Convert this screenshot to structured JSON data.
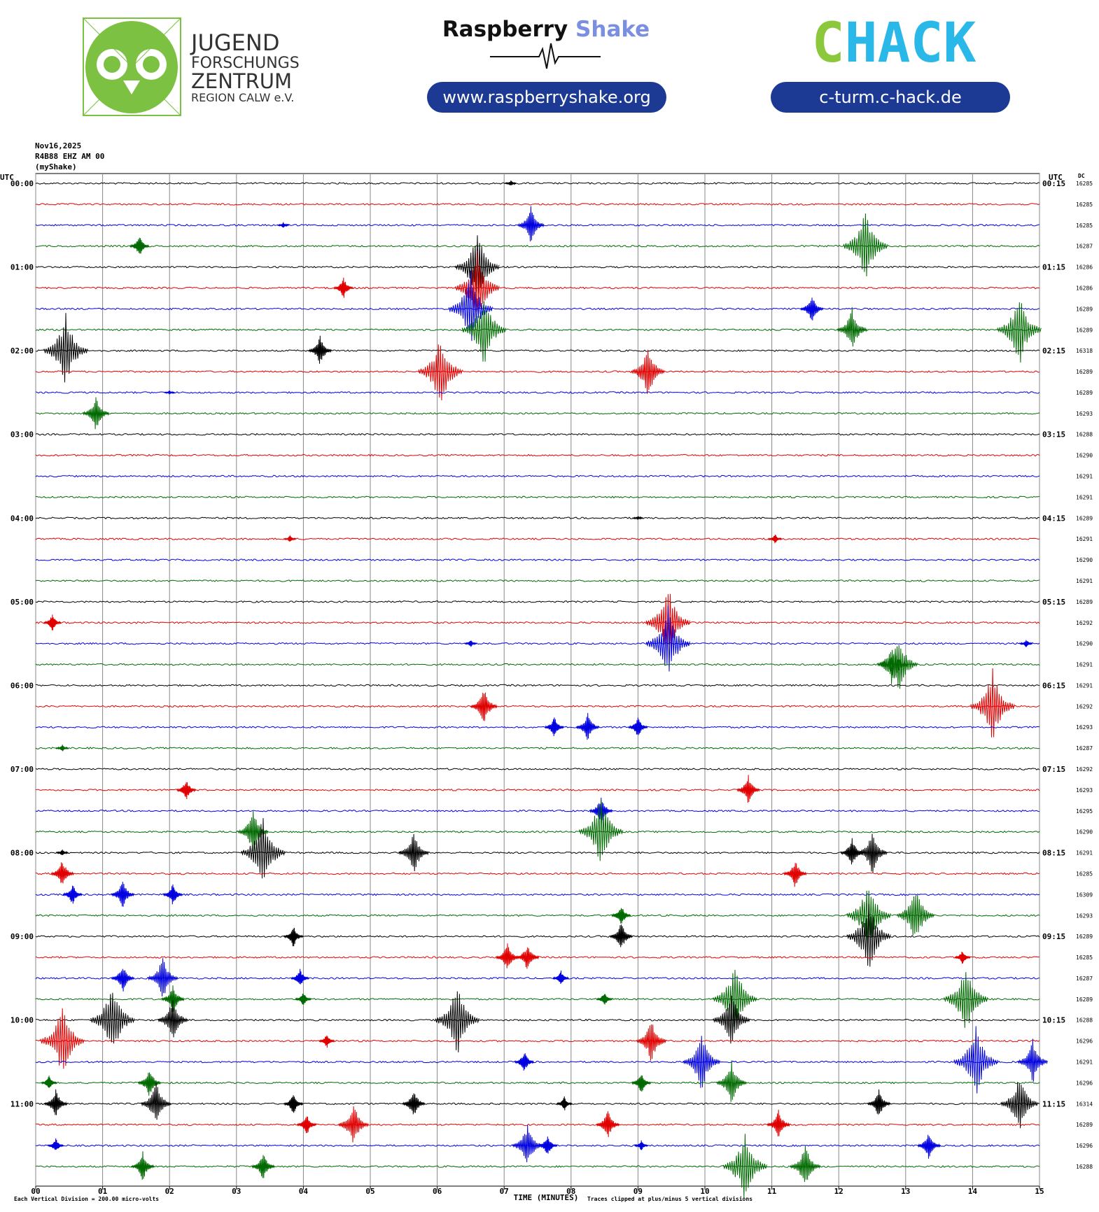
{
  "header": {
    "jfz": {
      "line1": "JUGEND",
      "line2": "FORSCHUNGS",
      "line3": "ZENTRUM",
      "line4": "REGION CALW e.V."
    },
    "rs": {
      "word1": "Raspberry",
      "word2": "Shake",
      "url": "www.raspberryshake.org"
    },
    "chack": {
      "first": "C",
      "rest": "HACK",
      "url": "c-turm.c-hack.de"
    }
  },
  "chart_data": {
    "type": "helicorder",
    "date": "Nov16,2025",
    "station": "R4B88 EHZ AM 00",
    "source": "(myShake)",
    "left_axis_label": "UTC",
    "right_axis_label": "UTC",
    "dc_label": "DC",
    "xlabel": "TIME (MINUTES)",
    "scale_note": "Each Vertical Division =  200.00 micro-volts",
    "clip_note": "Traces clipped at plus/minus 5 vertical divisions",
    "xlim": [
      0,
      15
    ],
    "xticks": [
      {
        "value": 0,
        "label": "00"
      },
      {
        "value": 1,
        "label": "01"
      },
      {
        "value": 2,
        "label": "02"
      },
      {
        "value": 3,
        "label": "03"
      },
      {
        "value": 4,
        "label": "04"
      },
      {
        "value": 5,
        "label": "05"
      },
      {
        "value": 6,
        "label": "06"
      },
      {
        "value": 7,
        "label": "07"
      },
      {
        "value": 8,
        "label": "08"
      },
      {
        "value": 9,
        "label": "09"
      },
      {
        "value": 10,
        "label": "10"
      },
      {
        "value": 11,
        "label": "11"
      },
      {
        "value": 12,
        "label": "12"
      },
      {
        "value": 13,
        "label": "13"
      },
      {
        "value": 14,
        "label": "14"
      },
      {
        "value": 15,
        "label": "15"
      }
    ],
    "grid": true,
    "rows": [
      {
        "left": "00:00",
        "right": "00:15",
        "dc": 16285,
        "color": "#000000",
        "events": [
          [
            7.1,
            0.4
          ]
        ]
      },
      {
        "left": null,
        "right": null,
        "dc": 16285,
        "color": "#e00000",
        "events": []
      },
      {
        "left": null,
        "right": null,
        "dc": 16285,
        "color": "#0000e0",
        "events": [
          [
            3.7,
            0.4
          ],
          [
            7.4,
            2.5
          ]
        ]
      },
      {
        "left": null,
        "right": null,
        "dc": 16287,
        "color": "#006a00",
        "events": [
          [
            1.55,
            1.5
          ],
          [
            12.4,
            5
          ]
        ]
      },
      {
        "left": "01:00",
        "right": "01:15",
        "dc": 16286,
        "color": "#000000",
        "events": [
          [
            6.6,
            5
          ]
        ]
      },
      {
        "left": null,
        "right": null,
        "dc": 16286,
        "color": "#e00000",
        "events": [
          [
            4.6,
            1.5
          ],
          [
            6.6,
            5
          ]
        ]
      },
      {
        "left": null,
        "right": null,
        "dc": 16289,
        "color": "#0000e0",
        "events": [
          [
            6.5,
            5
          ],
          [
            11.6,
            2
          ]
        ]
      },
      {
        "left": null,
        "right": null,
        "dc": 16289,
        "color": "#006a00",
        "events": [
          [
            6.7,
            5
          ],
          [
            12.2,
            3
          ],
          [
            14.7,
            5
          ]
        ]
      },
      {
        "left": "02:00",
        "right": "02:15",
        "dc": 16318,
        "color": "#000000",
        "events": [
          [
            0.45,
            5
          ],
          [
            4.25,
            2
          ]
        ]
      },
      {
        "left": null,
        "right": null,
        "dc": 16289,
        "color": "#e00000",
        "events": [
          [
            6.05,
            5
          ],
          [
            9.15,
            3.5
          ]
        ]
      },
      {
        "left": null,
        "right": null,
        "dc": 16289,
        "color": "#0000e0",
        "events": [
          [
            2.0,
            0.3
          ]
        ]
      },
      {
        "left": null,
        "right": null,
        "dc": 16293,
        "color": "#006a00",
        "events": [
          [
            0.9,
            2.5
          ]
        ]
      },
      {
        "left": "03:00",
        "right": "03:15",
        "dc": 16288,
        "color": "#000000",
        "events": []
      },
      {
        "left": null,
        "right": null,
        "dc": 16290,
        "color": "#e00000",
        "events": []
      },
      {
        "left": null,
        "right": null,
        "dc": 16291,
        "color": "#0000e0",
        "events": []
      },
      {
        "left": null,
        "right": null,
        "dc": 16291,
        "color": "#006a00",
        "events": []
      },
      {
        "left": "04:00",
        "right": "04:15",
        "dc": 16289,
        "color": "#000000",
        "events": [
          [
            9.0,
            0.3
          ]
        ]
      },
      {
        "left": null,
        "right": null,
        "dc": 16291,
        "color": "#e00000",
        "events": [
          [
            3.8,
            0.5
          ],
          [
            11.05,
            0.7
          ]
        ]
      },
      {
        "left": null,
        "right": null,
        "dc": 16290,
        "color": "#0000e0",
        "events": []
      },
      {
        "left": null,
        "right": null,
        "dc": 16291,
        "color": "#006a00",
        "events": []
      },
      {
        "left": "05:00",
        "right": "05:15",
        "dc": 16289,
        "color": "#000000",
        "events": []
      },
      {
        "left": null,
        "right": null,
        "dc": 16292,
        "color": "#e00000",
        "events": [
          [
            0.25,
            1.2
          ],
          [
            9.45,
            5
          ]
        ]
      },
      {
        "left": null,
        "right": null,
        "dc": 16290,
        "color": "#0000e0",
        "events": [
          [
            6.5,
            0.5
          ],
          [
            9.45,
            5
          ],
          [
            14.8,
            0.6
          ]
        ]
      },
      {
        "left": null,
        "right": null,
        "dc": 16291,
        "color": "#006a00",
        "events": [
          [
            12.8,
            3
          ],
          [
            12.9,
            4
          ]
        ]
      },
      {
        "left": "06:00",
        "right": "06:15",
        "dc": 16291,
        "color": "#000000",
        "events": []
      },
      {
        "left": null,
        "right": null,
        "dc": 16292,
        "color": "#e00000",
        "events": [
          [
            6.7,
            2.5
          ],
          [
            14.3,
            5
          ]
        ]
      },
      {
        "left": null,
        "right": null,
        "dc": 16293,
        "color": "#0000e0",
        "events": [
          [
            7.75,
            1.5
          ],
          [
            8.25,
            2
          ],
          [
            9.0,
            1.5
          ]
        ]
      },
      {
        "left": null,
        "right": null,
        "dc": 16287,
        "color": "#006a00",
        "events": [
          [
            0.4,
            0.5
          ]
        ]
      },
      {
        "left": "07:00",
        "right": "07:15",
        "dc": 16292,
        "color": "#000000",
        "events": []
      },
      {
        "left": null,
        "right": null,
        "dc": 16293,
        "color": "#e00000",
        "events": [
          [
            2.25,
            1.5
          ],
          [
            10.65,
            2
          ]
        ]
      },
      {
        "left": null,
        "right": null,
        "dc": 16295,
        "color": "#0000e0",
        "events": [
          [
            8.45,
            2
          ]
        ]
      },
      {
        "left": null,
        "right": null,
        "dc": 16290,
        "color": "#006a00",
        "events": [
          [
            8.45,
            5
          ],
          [
            3.25,
            3
          ]
        ]
      },
      {
        "left": "08:00",
        "right": "08:15",
        "dc": 16291,
        "color": "#000000",
        "events": [
          [
            3.4,
            5
          ],
          [
            5.65,
            3
          ],
          [
            0.4,
            0.5
          ],
          [
            12.2,
            2
          ],
          [
            12.5,
            3
          ]
        ]
      },
      {
        "left": null,
        "right": null,
        "dc": 16285,
        "color": "#e00000",
        "events": [
          [
            0.4,
            2
          ],
          [
            11.35,
            2
          ]
        ]
      },
      {
        "left": null,
        "right": null,
        "dc": 16309,
        "color": "#0000e0",
        "events": [
          [
            1.3,
            2
          ],
          [
            2.05,
            1.5
          ],
          [
            0.55,
            1.5
          ]
        ]
      },
      {
        "left": null,
        "right": null,
        "dc": 16293,
        "color": "#006a00",
        "events": [
          [
            8.75,
            1.5
          ],
          [
            12.45,
            5
          ],
          [
            13.15,
            4
          ]
        ]
      },
      {
        "left": "09:00",
        "right": "09:15",
        "dc": 16289,
        "color": "#000000",
        "events": [
          [
            3.85,
            1.5
          ],
          [
            8.75,
            2
          ],
          [
            12.45,
            5
          ]
        ]
      },
      {
        "left": null,
        "right": null,
        "dc": 16285,
        "color": "#e00000",
        "events": [
          [
            7.05,
            2
          ],
          [
            7.35,
            2
          ],
          [
            13.85,
            1
          ]
        ]
      },
      {
        "left": null,
        "right": null,
        "dc": 16287,
        "color": "#0000e0",
        "events": [
          [
            1.3,
            2
          ],
          [
            1.9,
            3
          ],
          [
            3.95,
            1.3
          ],
          [
            7.85,
            1
          ]
        ]
      },
      {
        "left": null,
        "right": null,
        "dc": 16289,
        "color": "#006a00",
        "events": [
          [
            2.05,
            2
          ],
          [
            8.5,
            1
          ],
          [
            10.45,
            5
          ],
          [
            13.9,
            5
          ],
          [
            4.0,
            1
          ]
        ]
      },
      {
        "left": "10:00",
        "right": "10:15",
        "dc": 16288,
        "color": "#000000",
        "events": [
          [
            1.15,
            5
          ],
          [
            2.05,
            3
          ],
          [
            6.3,
            5
          ],
          [
            10.4,
            4
          ]
        ]
      },
      {
        "left": null,
        "right": null,
        "dc": 16296,
        "color": "#e00000",
        "events": [
          [
            0.4,
            5
          ],
          [
            9.2,
            3
          ],
          [
            4.35,
            1
          ]
        ]
      },
      {
        "left": null,
        "right": null,
        "dc": 16291,
        "color": "#0000e0",
        "events": [
          [
            7.3,
            1.5
          ],
          [
            9.95,
            4
          ],
          [
            14.05,
            5
          ],
          [
            14.9,
            3
          ]
        ]
      },
      {
        "left": null,
        "right": null,
        "dc": 16296,
        "color": "#006a00",
        "events": [
          [
            0.2,
            1
          ],
          [
            1.7,
            2
          ],
          [
            9.05,
            1.5
          ],
          [
            10.4,
            3
          ]
        ]
      },
      {
        "left": "11:00",
        "right": "11:15",
        "dc": 16314,
        "color": "#000000",
        "events": [
          [
            0.3,
            2
          ],
          [
            1.8,
            3
          ],
          [
            3.85,
            1.5
          ],
          [
            5.65,
            2
          ],
          [
            7.9,
            1
          ],
          [
            12.6,
            2
          ],
          [
            14.7,
            4
          ]
        ]
      },
      {
        "left": null,
        "right": null,
        "dc": 16289,
        "color": "#e00000",
        "events": [
          [
            4.05,
            1.5
          ],
          [
            4.75,
            3
          ],
          [
            8.55,
            2
          ],
          [
            11.1,
            2
          ]
        ]
      },
      {
        "left": null,
        "right": null,
        "dc": 16296,
        "color": "#0000e0",
        "events": [
          [
            0.3,
            1
          ],
          [
            7.35,
            3
          ],
          [
            7.65,
            1.5
          ],
          [
            9.05,
            0.7
          ],
          [
            13.35,
            2
          ]
        ]
      },
      {
        "left": null,
        "right": null,
        "dc": 16288,
        "color": "#006a00",
        "events": [
          [
            1.6,
            2
          ],
          [
            3.4,
            2
          ],
          [
            10.6,
            5
          ],
          [
            11.5,
            3
          ]
        ]
      }
    ]
  }
}
